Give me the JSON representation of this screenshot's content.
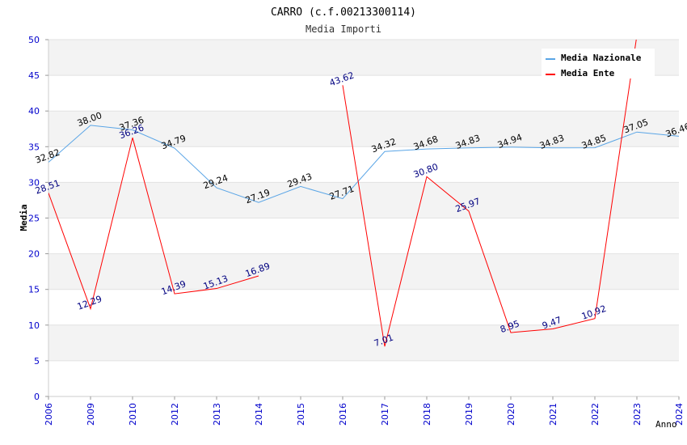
{
  "chart_data": {
    "type": "line",
    "title": "CARRO (c.f.00213300114)",
    "subtitle": "Media Importi",
    "xlabel": "Anno",
    "ylabel": "Media",
    "ylim": [
      0,
      50
    ],
    "yticks": [
      0,
      5,
      10,
      15,
      20,
      25,
      30,
      35,
      40,
      45,
      50
    ],
    "categories": [
      "2006",
      "2009",
      "2010",
      "2012",
      "2013",
      "2014",
      "2015",
      "2016",
      "2017",
      "2018",
      "2019",
      "2020",
      "2021",
      "2022",
      "2023",
      "2024"
    ],
    "legend_position": "top-right",
    "series": [
      {
        "name": "Media Nazionale",
        "color": "#5aa5e6",
        "label_color": "#000000",
        "values": [
          32.82,
          38.0,
          37.36,
          34.79,
          29.24,
          27.19,
          29.43,
          27.71,
          34.32,
          34.68,
          34.83,
          34.94,
          34.83,
          34.85,
          37.05,
          36.46
        ],
        "labels": [
          "32.82",
          "38.00",
          "37.36",
          "34.79",
          "29.24",
          "27.19",
          "29.43",
          "27.71",
          "34.32",
          "34.68",
          "34.83",
          "34.94",
          "34.83",
          "34.85",
          "37.05",
          "36.46"
        ]
      },
      {
        "name": "Media Ente",
        "color": "#ff0000",
        "label_color": "#000080",
        "values": [
          28.51,
          12.29,
          36.26,
          14.39,
          15.13,
          16.89,
          null,
          43.62,
          7.01,
          30.8,
          25.97,
          8.95,
          9.47,
          10.92,
          50.6,
          null
        ],
        "labels": [
          "28.51",
          "12.29",
          "36.26",
          "14.39",
          "15.13",
          "16.89",
          null,
          "43.62",
          "7.01",
          "30.80",
          "25.97",
          "8.95",
          "9.47",
          "10.92",
          null,
          null
        ]
      }
    ]
  }
}
